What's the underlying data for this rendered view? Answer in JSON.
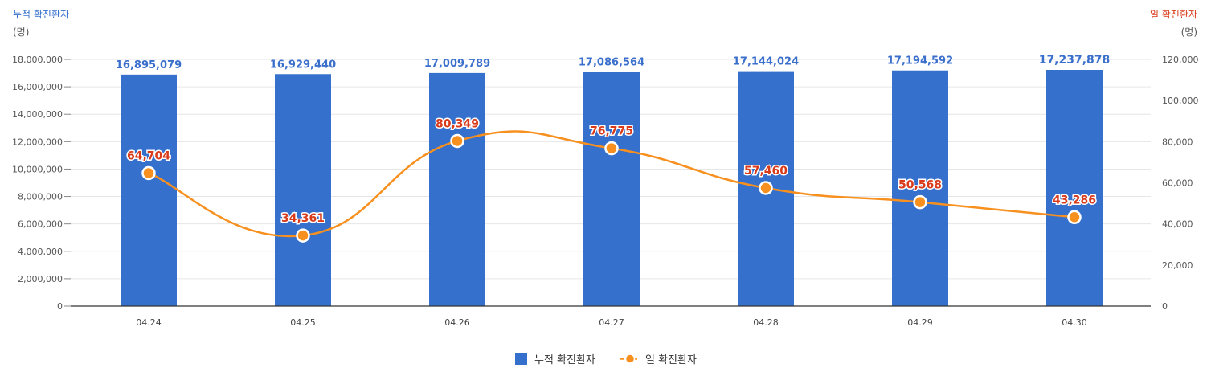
{
  "chart_data": {
    "type": "bar+line",
    "categories": [
      "04.24",
      "04.25",
      "04.26",
      "04.27",
      "04.28",
      "04.29",
      "04.30"
    ],
    "series": [
      {
        "name": "누적 확진환자",
        "type": "bar",
        "axis": "left",
        "color": "#3570cc",
        "values": [
          16895079,
          16929440,
          17009789,
          17086564,
          17144024,
          17194592,
          17237878
        ],
        "labels": [
          "16,895,079",
          "16,929,440",
          "17,009,789",
          "17,086,564",
          "17,144,024",
          "17,194,592",
          "17,237,878"
        ]
      },
      {
        "name": "일 확진환자",
        "type": "line",
        "axis": "right",
        "color": "#f7901e",
        "values": [
          64704,
          34361,
          80349,
          76775,
          57460,
          50568,
          43286
        ],
        "labels": [
          "64,704",
          "34,361",
          "80,349",
          "76,775",
          "57,460",
          "50,568",
          "43,286"
        ]
      }
    ],
    "left_axis": {
      "title": "누적 확진환자",
      "unit": "(명)",
      "title_color": "#3570cc",
      "ylim": [
        0,
        18000000
      ],
      "ticks": [
        0,
        2000000,
        4000000,
        6000000,
        8000000,
        10000000,
        12000000,
        14000000,
        16000000,
        18000000
      ],
      "tick_labels": [
        "0",
        "2,000,000",
        "4,000,000",
        "6,000,000",
        "8,000,000",
        "10,000,000",
        "12,000,000",
        "14,000,000",
        "16,000,000",
        "18,000,000"
      ]
    },
    "right_axis": {
      "title": "일 확진환자",
      "unit": "(명)",
      "title_color": "#d93a1a",
      "ylim": [
        0,
        120000
      ],
      "ticks": [
        0,
        20000,
        40000,
        60000,
        80000,
        100000,
        120000
      ],
      "tick_labels": [
        "0",
        "20,000",
        "40,000",
        "60,000",
        "80,000",
        "100,000",
        "120,000"
      ]
    },
    "grid": true,
    "legend": {
      "position": "bottom-center",
      "items": [
        "누적 확진환자",
        "일 확진환자"
      ]
    }
  }
}
